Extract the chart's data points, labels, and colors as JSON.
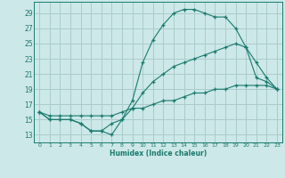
{
  "xlabel": "Humidex (Indice chaleur)",
  "background_color": "#cce8e8",
  "grid_color": "#aacccc",
  "line_color": "#1a7a6e",
  "xlim": [
    -0.5,
    23.5
  ],
  "ylim": [
    12.0,
    30.5
  ],
  "yticks": [
    13,
    15,
    17,
    19,
    21,
    23,
    25,
    27,
    29
  ],
  "xticks": [
    0,
    1,
    2,
    3,
    4,
    5,
    6,
    7,
    8,
    9,
    10,
    11,
    12,
    13,
    14,
    15,
    16,
    17,
    18,
    19,
    20,
    21,
    22,
    23
  ],
  "line1_x": [
    0,
    1,
    2,
    3,
    4,
    5,
    6,
    7,
    8,
    9,
    10,
    11,
    12,
    13,
    14,
    15,
    16,
    17,
    18,
    19,
    20,
    21,
    22,
    23
  ],
  "line1_y": [
    16,
    15,
    15,
    15,
    14.5,
    13.5,
    13.5,
    13,
    15,
    17.5,
    22.5,
    25.5,
    27.5,
    29,
    29.5,
    29.5,
    29,
    28.5,
    28.5,
    27,
    24.5,
    20.5,
    20,
    19
  ],
  "line2_x": [
    0,
    1,
    2,
    3,
    4,
    5,
    6,
    7,
    8,
    9,
    10,
    11,
    12,
    13,
    14,
    15,
    16,
    17,
    18,
    19,
    20,
    21,
    22,
    23
  ],
  "line2_y": [
    16,
    15,
    15,
    15,
    14.5,
    13.5,
    13.5,
    14.5,
    15,
    16.5,
    18.5,
    20,
    21,
    22,
    22.5,
    23,
    23.5,
    24,
    24.5,
    25,
    24.5,
    22.5,
    20.5,
    19
  ],
  "line3_x": [
    0,
    1,
    2,
    3,
    4,
    5,
    6,
    7,
    8,
    9,
    10,
    11,
    12,
    13,
    14,
    15,
    16,
    17,
    18,
    19,
    20,
    21,
    22,
    23
  ],
  "line3_y": [
    16,
    15.5,
    15.5,
    15.5,
    15.5,
    15.5,
    15.5,
    15.5,
    16,
    16.5,
    16.5,
    17,
    17.5,
    17.5,
    18,
    18.5,
    18.5,
    19,
    19,
    19.5,
    19.5,
    19.5,
    19.5,
    19
  ]
}
